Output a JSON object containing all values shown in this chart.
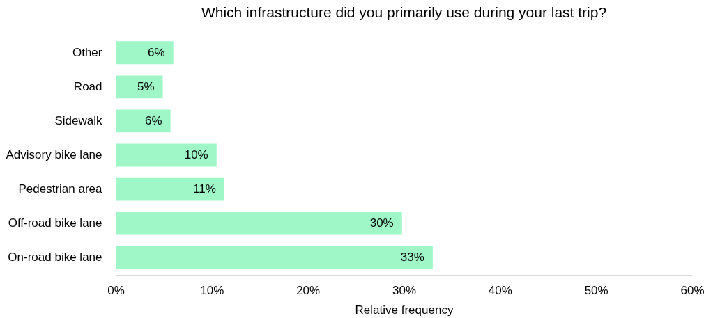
{
  "chart_data": {
    "type": "bar",
    "orientation": "horizontal",
    "title": "Which infrastructure did you primarily use during your last trip?",
    "xlabel": "Relative frequency",
    "categories": [
      "Other",
      "Road",
      "Sidewalk",
      "Advisory bike lane",
      "Pedestrian area",
      "Off-road bike lane",
      "On-road bike lane"
    ],
    "values": [
      6.0,
      4.9,
      5.7,
      10.5,
      11.3,
      29.8,
      33.0
    ],
    "value_labels": [
      "6%",
      "5%",
      "6%",
      "10%",
      "11%",
      "30%",
      "33%"
    ],
    "color": "#9ff7c8",
    "xlim": [
      0,
      60
    ],
    "xticks": [
      {
        "value": 0,
        "label": "0%"
      },
      {
        "value": 10,
        "label": "10%"
      },
      {
        "value": 20,
        "label": "20%"
      },
      {
        "value": 30,
        "label": "30%"
      },
      {
        "value": 40,
        "label": "40%"
      },
      {
        "value": 50,
        "label": "50%"
      },
      {
        "value": 60,
        "label": "60%"
      }
    ],
    "grid": false
  }
}
